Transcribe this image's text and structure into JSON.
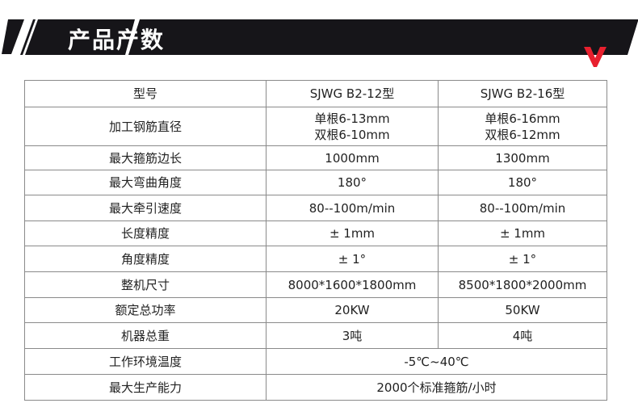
{
  "header": {
    "title": "产品产数",
    "accent": "#e8202e"
  },
  "table": {
    "header": [
      "型号",
      "SJWG B2-12型",
      "SJWG B2-16型"
    ],
    "rows": [
      [
        "加工钢筋直径",
        "单根6-13mm\n双根6-10mm",
        "单根6-16mm\n双根6-12mm"
      ],
      [
        "最大箍筋边长",
        "1000mm",
        "1300mm"
      ],
      [
        "最大弯曲角度",
        "180°",
        "180°"
      ],
      [
        "最大牵引速度",
        "80--100m/min",
        "80--100m/min"
      ],
      [
        "长度精度",
        "± 1mm",
        "± 1mm"
      ],
      [
        "角度精度",
        "± 1°",
        "± 1°"
      ],
      [
        "整机尺寸",
        "8000*1600*1800mm",
        "8500*1800*2000mm"
      ],
      [
        "额定总功率",
        "20KW",
        "50KW"
      ],
      [
        "机器总重",
        "3吨",
        "4吨"
      ]
    ],
    "merged_rows": [
      [
        "工作环境温度",
        "-5℃~40℃"
      ],
      [
        "最大生产能力",
        "2000个标准箍筋/小时"
      ]
    ]
  }
}
